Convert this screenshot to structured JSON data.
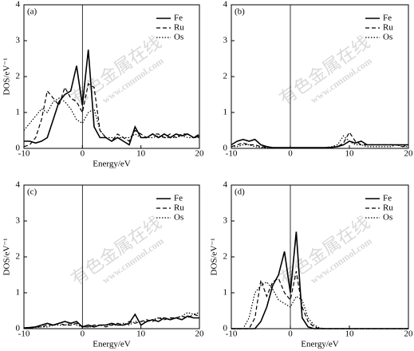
{
  "watermark": "有色金属在线",
  "watermark_url": "www.cnnmol.com",
  "chart_data": [
    {
      "type": "line",
      "panel_label": "(a)",
      "xlabel": "Energy/eV",
      "ylabel": "DOS/eV⁻¹",
      "x": [
        -10,
        -9,
        -8,
        -7,
        -6,
        -5,
        -4,
        -3,
        -2,
        -1,
        0,
        1,
        2,
        3,
        4,
        5,
        6,
        7,
        8,
        9,
        10,
        11,
        12,
        13,
        14,
        15,
        16,
        17,
        18,
        19,
        20
      ],
      "xlim": [
        -10,
        20
      ],
      "xticks": [
        -10,
        0,
        10,
        20
      ],
      "ylim": [
        0,
        4
      ],
      "yticks": [
        0,
        1,
        2,
        3,
        4
      ],
      "series": [
        {
          "name": "Fe",
          "color": "#000000",
          "line_style": "solid",
          "values": [
            0.2,
            0.2,
            0.15,
            0.2,
            0.3,
            0.8,
            1.3,
            1.5,
            1.6,
            2.3,
            1.2,
            2.75,
            0.6,
            0.3,
            0.3,
            0.2,
            0.3,
            0.2,
            0.1,
            0.6,
            0.3,
            0.3,
            0.4,
            0.3,
            0.4,
            0.3,
            0.4,
            0.35,
            0.4,
            0.3,
            0.35
          ]
        },
        {
          "name": "Ru",
          "color": "#000000",
          "line_style": "dashed",
          "values": [
            0.05,
            0.1,
            0.3,
            0.8,
            1.6,
            1.4,
            1.2,
            1.7,
            1.4,
            1.3,
            1.0,
            1.8,
            1.7,
            0.5,
            0.3,
            0.2,
            0.4,
            0.3,
            0.2,
            0.5,
            0.4,
            0.3,
            0.4,
            0.4,
            0.3,
            0.4,
            0.3,
            0.4,
            0.4,
            0.3,
            0.4
          ]
        },
        {
          "name": "Os",
          "color": "#000000",
          "line_style": "dotted",
          "values": [
            0.5,
            0.7,
            0.9,
            1.1,
            1.0,
            1.3,
            1.4,
            1.3,
            1.1,
            0.8,
            0.7,
            1.0,
            1.1,
            0.5,
            0.3,
            0.3,
            0.3,
            0.3,
            0.3,
            0.4,
            0.3,
            0.3,
            0.3,
            0.35,
            0.3,
            0.3,
            0.3,
            0.35,
            0.3,
            0.3,
            0.3
          ]
        }
      ]
    },
    {
      "type": "line",
      "panel_label": "(b)",
      "x": [
        -10,
        -9,
        -8,
        -7,
        -6,
        -5,
        -4,
        -3,
        -2,
        -1,
        0,
        1,
        2,
        3,
        4,
        5,
        6,
        7,
        8,
        9,
        10,
        11,
        12,
        13,
        14,
        15,
        16,
        17,
        18,
        19,
        20
      ],
      "xlim": [
        -10,
        20
      ],
      "xticks": [
        -10,
        0,
        10,
        20
      ],
      "ylim": [
        0,
        4
      ],
      "yticks": [
        0,
        1,
        2,
        3,
        4
      ],
      "series": [
        {
          "name": "Fe",
          "color": "#000000",
          "line_style": "solid",
          "values": [
            0.1,
            0.2,
            0.25,
            0.2,
            0.25,
            0.1,
            0.05,
            0.02,
            0.02,
            0.02,
            0.02,
            0.02,
            0.02,
            0.02,
            0.02,
            0.02,
            0.02,
            0.03,
            0.05,
            0.1,
            0.2,
            0.15,
            0.2,
            0.1,
            0.1,
            0.1,
            0.1,
            0.1,
            0.1,
            0.1,
            0.1
          ]
        },
        {
          "name": "Ru",
          "color": "#000000",
          "line_style": "dashed",
          "values": [
            0.05,
            0.1,
            0.15,
            0.1,
            0.1,
            0.05,
            0.03,
            0.02,
            0.02,
            0.02,
            0.02,
            0.02,
            0.02,
            0.02,
            0.02,
            0.02,
            0.02,
            0.03,
            0.05,
            0.15,
            0.45,
            0.2,
            0.1,
            0.1,
            0.1,
            0.1,
            0.1,
            0.1,
            0.1,
            0.05,
            0.1
          ]
        },
        {
          "name": "Os",
          "color": "#000000",
          "line_style": "dotted",
          "values": [
            0.05,
            0.05,
            0.1,
            0.1,
            0.05,
            0.03,
            0.02,
            0.02,
            0.02,
            0.02,
            0.02,
            0.02,
            0.02,
            0.02,
            0.02,
            0.02,
            0.02,
            0.05,
            0.1,
            0.35,
            0.2,
            0.1,
            0.1,
            0.05,
            0.05,
            0.05,
            0.05,
            0.05,
            0.1,
            0.05,
            0.05
          ]
        }
      ]
    },
    {
      "type": "line",
      "panel_label": "(c)",
      "xlabel": "Energy/eV",
      "ylabel": "DOS/eV⁻¹",
      "x": [
        -10,
        -9,
        -8,
        -7,
        -6,
        -5,
        -4,
        -3,
        -2,
        -1,
        0,
        1,
        2,
        3,
        4,
        5,
        6,
        7,
        8,
        9,
        10,
        11,
        12,
        13,
        14,
        15,
        16,
        17,
        18,
        19,
        20
      ],
      "xlim": [
        -10,
        20
      ],
      "xticks": [
        -10,
        0,
        10,
        20
      ],
      "ylim": [
        0,
        4
      ],
      "yticks": [
        0,
        1,
        2,
        3,
        4
      ],
      "series": [
        {
          "name": "Fe",
          "color": "#000000",
          "line_style": "solid",
          "values": [
            0.02,
            0.03,
            0.05,
            0.1,
            0.15,
            0.1,
            0.15,
            0.2,
            0.15,
            0.2,
            0.05,
            0.1,
            0.05,
            0.1,
            0.1,
            0.15,
            0.1,
            0.1,
            0.15,
            0.4,
            0.1,
            0.2,
            0.25,
            0.2,
            0.3,
            0.25,
            0.3,
            0.25,
            0.35,
            0.3,
            0.3
          ]
        },
        {
          "name": "Ru",
          "color": "#000000",
          "line_style": "dashed",
          "values": [
            0.02,
            0.02,
            0.05,
            0.05,
            0.1,
            0.1,
            0.15,
            0.1,
            0.1,
            0.15,
            0.05,
            0.05,
            0.1,
            0.1,
            0.05,
            0.1,
            0.15,
            0.1,
            0.2,
            0.15,
            0.2,
            0.25,
            0.2,
            0.3,
            0.25,
            0.3,
            0.3,
            0.35,
            0.3,
            0.4,
            0.35
          ]
        },
        {
          "name": "Os",
          "color": "#000000",
          "line_style": "dotted",
          "values": [
            0.02,
            0.02,
            0.03,
            0.05,
            0.05,
            0.1,
            0.1,
            0.1,
            0.15,
            0.1,
            0.05,
            0.05,
            0.05,
            0.1,
            0.1,
            0.1,
            0.1,
            0.15,
            0.1,
            0.2,
            0.2,
            0.2,
            0.25,
            0.3,
            0.3,
            0.25,
            0.3,
            0.35,
            0.45,
            0.4,
            0.45
          ]
        }
      ]
    },
    {
      "type": "line",
      "panel_label": "(d)",
      "xlabel": "Energy/eV",
      "ylabel": "DOS/eV⁻¹",
      "x": [
        -10,
        -9,
        -8,
        -7,
        -6,
        -5,
        -4,
        -3,
        -2,
        -1,
        0,
        1,
        2,
        3,
        4,
        5,
        6,
        7,
        8,
        9,
        10,
        11,
        12,
        13,
        14,
        15,
        16,
        17,
        18,
        19,
        20
      ],
      "xlim": [
        -10,
        20
      ],
      "xticks": [
        -10,
        0,
        10,
        20
      ],
      "ylim": [
        0,
        4
      ],
      "yticks": [
        0,
        1,
        2,
        3,
        4
      ],
      "series": [
        {
          "name": "Fe",
          "color": "#000000",
          "line_style": "solid",
          "values": [
            0,
            0,
            0,
            0,
            0,
            0.2,
            0.6,
            1.2,
            1.5,
            2.15,
            1.0,
            2.7,
            0.3,
            0.05,
            0,
            0,
            0,
            0,
            0,
            0,
            0,
            0,
            0,
            0,
            0,
            0,
            0,
            0,
            0,
            0,
            0
          ]
        },
        {
          "name": "Ru",
          "color": "#000000",
          "line_style": "dashed",
          "values": [
            0,
            0,
            0,
            0,
            0.3,
            1.35,
            0.9,
            1.3,
            1.4,
            1.0,
            0.8,
            1.6,
            0.6,
            0.2,
            0.05,
            0,
            0,
            0,
            0,
            0,
            0,
            0,
            0,
            0,
            0,
            0,
            0,
            0,
            0,
            0,
            0
          ]
        },
        {
          "name": "Os",
          "color": "#000000",
          "line_style": "dotted",
          "values": [
            0,
            0,
            0,
            0.3,
            1.0,
            1.2,
            1.3,
            1.1,
            0.8,
            0.7,
            0.6,
            0.9,
            0.8,
            0.3,
            0.1,
            0.02,
            0,
            0,
            0,
            0,
            0,
            0,
            0,
            0,
            0,
            0,
            0,
            0,
            0,
            0,
            0
          ]
        }
      ]
    }
  ]
}
